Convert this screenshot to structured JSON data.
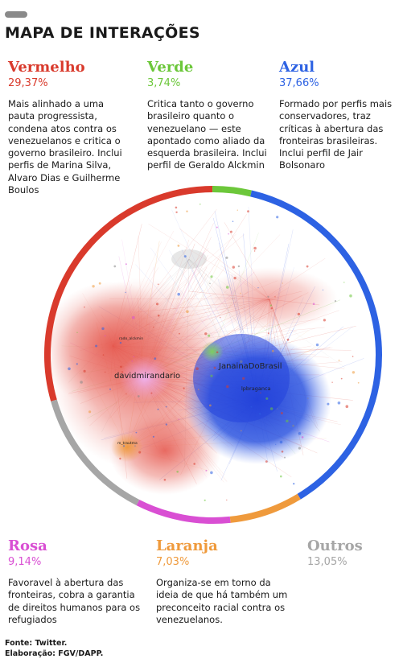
{
  "header": {
    "title": "MAPA DE INTERAÇÕES"
  },
  "groups": [
    {
      "name": "Vermelho",
      "pct": "29,37%",
      "color": "#d93a2c",
      "desc": "Mais alinhado a uma pauta progressista, condena atos contra os venezuelanos e critica o governo brasileiro. Inclui perfis de Marina Silva, Alvaro Dias e Guilherme Boulos"
    },
    {
      "name": "Verde",
      "pct": "3,74%",
      "color": "#6cc73a",
      "desc": "Critica tanto o governo brasileiro quanto o venezuelano — este apontado como aliado da esquerda brasileira. Inclui perfil de Geraldo Alckmin"
    },
    {
      "name": "Azul",
      "pct": "37,66%",
      "color": "#2d62e3",
      "desc": "Formado por perfis mais conservadores, traz críticas à abertura das fronteiras brasileiras. Inclui perfil de Jair Bolsonaro"
    },
    {
      "name": "Rosa",
      "pct": "9,14%",
      "color": "#d94fd3",
      "desc": "Favoravel à abertura das fronteiras, cobra a garantia de direitos humanos para os refugiados"
    },
    {
      "name": "Laranja",
      "pct": "7,03%",
      "color": "#ef9a3c",
      "desc": "Organiza-se em torno da ideia de que há também um preconceito racial contra os venezuelanos."
    },
    {
      "name": "Outros",
      "pct": "13,05%",
      "color": "#a6a6a6",
      "desc": ""
    }
  ],
  "chart_data": {
    "type": "pie",
    "title": "MAPA DE INTERAÇÕES",
    "categories": [
      "Vermelho",
      "Verde",
      "Azul",
      "Laranja",
      "Rosa",
      "Outros"
    ],
    "values": [
      29.37,
      3.74,
      37.66,
      7.03,
      9.14,
      13.05
    ],
    "colors": [
      "#d93a2c",
      "#6cc73a",
      "#2d62e3",
      "#ef9a3c",
      "#d94fd3",
      "#a6a6a6"
    ],
    "start_angle_deg": -106,
    "direction": "clockwise",
    "style": "ring around network graph",
    "node_labels": [
      "davidmirandario",
      "JanainaDoBrasil",
      "lpbraganca",
      "m_trautma",
      "rado_alckmin"
    ]
  },
  "footer": {
    "source": "Fonte: Twitter.",
    "credit": "Elaboração: FGV/DAPP."
  }
}
